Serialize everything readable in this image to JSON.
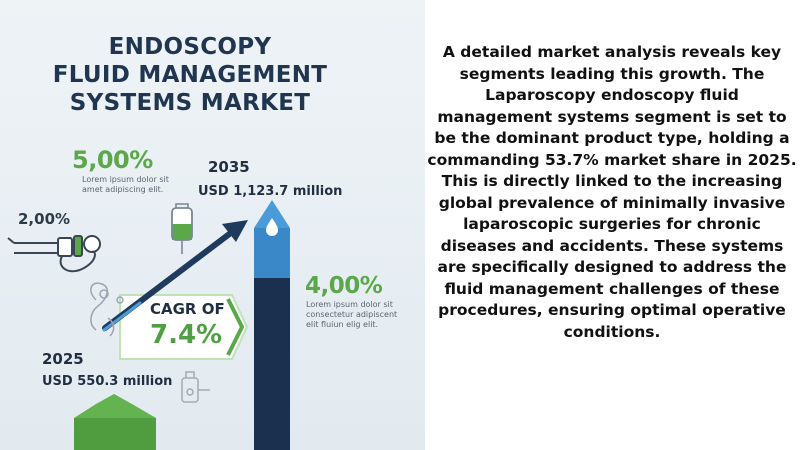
{
  "infographic": {
    "title_lines": [
      "ENDOSCOPY",
      "FLUID MANAGEMENT",
      "SYSTEMS MARKET"
    ],
    "stat_top": {
      "value": "5,00%",
      "description_lines": [
        "Lorem ipsum dolor sit",
        "amet adipiscing elit."
      ]
    },
    "stat_left": {
      "value": "2,00%"
    },
    "stat_right": {
      "value": "4,00%",
      "description_lines": [
        "Lorem ipsum dolor sit",
        "consectetur adipiscent",
        "elit fluiun elig elit."
      ]
    },
    "forecast_2035": {
      "year": "2035",
      "amount": "USD 1,123.7 million"
    },
    "base_2025": {
      "year": "2025",
      "amount": "USD 550.3 million"
    },
    "cagr": {
      "label": "CAGR OF",
      "value": "7.4%"
    },
    "colors": {
      "title": "#1f3550",
      "accent_green": "#5aa84a",
      "bar_dark": "#1b2f4e",
      "bar_light": "#3b88c8",
      "arrow": "#1e3a5c"
    },
    "icons": [
      "endoscope-icon",
      "iv-bag-icon",
      "fluid-drop-icon",
      "medical-tubing-icon",
      "bottle-icon"
    ]
  },
  "paragraph": "A detailed market analysis reveals key segments leading this growth. The Laparoscopy endoscopy fluid management systems segment is set to be the dominant product type, holding a commanding 53.7% market share in 2025. This is directly linked to the increasing global prevalence of minimally invasive laparoscopic surgeries for chronic diseases and accidents. These systems are specifically designed to address the fluid management challenges of these procedures, ensuring optimal operative conditions."
}
